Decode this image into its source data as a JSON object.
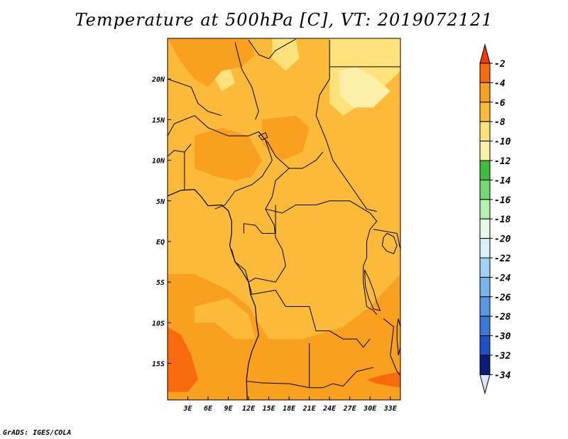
{
  "title": "Temperature at 500hPa [C], VT: 2019072121",
  "footer": "GrADS: IGES/COLA",
  "map": {
    "lon_range": [
      0,
      34.5
    ],
    "lat_range": [
      -19.5,
      25
    ],
    "x_ticks": [
      {
        "value": 3,
        "label": "3E"
      },
      {
        "value": 6,
        "label": "6E"
      },
      {
        "value": 9,
        "label": "9E"
      },
      {
        "value": 12,
        "label": "12E"
      },
      {
        "value": 15,
        "label": "15E"
      },
      {
        "value": 18,
        "label": "18E"
      },
      {
        "value": 21,
        "label": "21E"
      },
      {
        "value": 24,
        "label": "24E"
      },
      {
        "value": 27,
        "label": "27E"
      },
      {
        "value": 30,
        "label": "30E"
      },
      {
        "value": 33,
        "label": "33E"
      }
    ],
    "y_ticks": [
      {
        "value": 20,
        "label": "20N"
      },
      {
        "value": 15,
        "label": "15N"
      },
      {
        "value": 10,
        "label": "10N"
      },
      {
        "value": 5,
        "label": "5N"
      },
      {
        "value": 0,
        "label": "EQ"
      },
      {
        "value": -5,
        "label": "5S"
      },
      {
        "value": -10,
        "label": "10S"
      },
      {
        "value": -15,
        "label": "15S"
      }
    ],
    "regions": [
      {
        "name": "background",
        "color": "#fbba3a",
        "polygon": [
          [
            0,
            25
          ],
          [
            34.5,
            25
          ],
          [
            34.5,
            -19.5
          ],
          [
            0,
            -19.5
          ]
        ]
      },
      {
        "name": "cool-northeast",
        "color": "#fde27b",
        "polygon": [
          [
            24,
            25
          ],
          [
            34.5,
            25
          ],
          [
            34.5,
            21
          ],
          [
            32,
            19
          ],
          [
            29,
            17
          ],
          [
            26,
            15.5
          ],
          [
            24,
            17
          ]
        ]
      },
      {
        "name": "cool-northeast-inner",
        "color": "#fef0a8",
        "polygon": [
          [
            25.5,
            21
          ],
          [
            28,
            21.5
          ],
          [
            31,
            20
          ],
          [
            33,
            18.5
          ],
          [
            30.5,
            16.5
          ],
          [
            27.5,
            16.5
          ],
          [
            25.5,
            18
          ]
        ]
      },
      {
        "name": "cool-north-patch",
        "color": "#fde27b",
        "polygon": [
          [
            15.5,
            25
          ],
          [
            19,
            25
          ],
          [
            19.5,
            22.5
          ],
          [
            17.5,
            21
          ],
          [
            15.5,
            22.5
          ]
        ]
      },
      {
        "name": "cool-sahel-patch",
        "color": "#fde27b",
        "polygon": [
          [
            6,
            21.5
          ],
          [
            9,
            22
          ],
          [
            10,
            19.5
          ],
          [
            8,
            18.5
          ]
        ]
      },
      {
        "name": "warm-west-africa",
        "color": "#f9a021",
        "polygon": [
          [
            0,
            25
          ],
          [
            12,
            25
          ],
          [
            13,
            23
          ],
          [
            11,
            21.5
          ],
          [
            8,
            21
          ],
          [
            6,
            19
          ],
          [
            4,
            20
          ],
          [
            2,
            22
          ]
        ]
      },
      {
        "name": "warm-nigeria",
        "color": "#f9a021",
        "polygon": [
          [
            4,
            13
          ],
          [
            8,
            14
          ],
          [
            12,
            13
          ],
          [
            14,
            10
          ],
          [
            12.5,
            8
          ],
          [
            10,
            7.5
          ],
          [
            7,
            8
          ],
          [
            4,
            9
          ]
        ]
      },
      {
        "name": "warm-chad",
        "color": "#f9a021",
        "polygon": [
          [
            14,
            15
          ],
          [
            19,
            15.5
          ],
          [
            21,
            14
          ],
          [
            20,
            11
          ],
          [
            17,
            10
          ],
          [
            14,
            12
          ]
        ]
      },
      {
        "name": "warm-south",
        "color": "#f9a021",
        "polygon": [
          [
            0,
            -4
          ],
          [
            4,
            -4
          ],
          [
            9,
            -6
          ],
          [
            12,
            -8
          ],
          [
            15,
            -12
          ],
          [
            20,
            -12
          ],
          [
            26,
            -10.5
          ],
          [
            30,
            -8
          ],
          [
            34.5,
            -4
          ],
          [
            34.5,
            -19.5
          ],
          [
            0,
            -19.5
          ]
        ]
      },
      {
        "name": "cool-southwest-band",
        "color": "#fbba3a",
        "polygon": [
          [
            4,
            -8
          ],
          [
            9,
            -7
          ],
          [
            12,
            -9
          ],
          [
            13,
            -12
          ],
          [
            10,
            -12
          ],
          [
            7,
            -10
          ],
          [
            4,
            -10
          ]
        ]
      },
      {
        "name": "cool-south-center",
        "color": "#fbba3a",
        "polygon": [
          [
            18,
            -7
          ],
          [
            22,
            -6
          ],
          [
            24,
            -8
          ],
          [
            22,
            -11
          ],
          [
            19,
            -10
          ]
        ]
      },
      {
        "name": "hot-southwest",
        "color": "#f86a0e",
        "polygon": [
          [
            0,
            -10.5
          ],
          [
            2,
            -11.5
          ],
          [
            3.5,
            -14
          ],
          [
            4.5,
            -17
          ],
          [
            3,
            -18.5
          ],
          [
            0,
            -18.5
          ]
        ]
      },
      {
        "name": "hot-southeast",
        "color": "#f86a0e",
        "polygon": [
          [
            29.5,
            -17
          ],
          [
            31.5,
            -16.5
          ],
          [
            34.5,
            -16
          ],
          [
            34.5,
            -18
          ],
          [
            31,
            -17.5
          ]
        ]
      }
    ],
    "borders": [
      [
        [
          12,
          24.8
        ],
        [
          13.5,
          23
        ],
        [
          15,
          22.5
        ],
        [
          16,
          23.5
        ],
        [
          19,
          24.9
        ]
      ],
      [
        [
          10,
          24.5
        ],
        [
          11,
          21.2
        ],
        [
          12.5,
          19
        ],
        [
          13.5,
          16
        ],
        [
          13,
          15
        ]
      ],
      [
        [
          24,
          24.8
        ],
        [
          24,
          20
        ],
        [
          22.5,
          18
        ],
        [
          22,
          15.5
        ],
        [
          23.5,
          12.5
        ],
        [
          24.5,
          10
        ],
        [
          27,
          7
        ],
        [
          29.5,
          4
        ],
        [
          31,
          3.7
        ]
      ],
      [
        [
          24,
          21.5
        ],
        [
          34.5,
          21.5
        ]
      ],
      [
        [
          4,
          15.5
        ],
        [
          6,
          14
        ],
        [
          9,
          13
        ],
        [
          12,
          13
        ],
        [
          13.5,
          13.5
        ],
        [
          14.5,
          12.5
        ],
        [
          15.5,
          10
        ],
        [
          14,
          8
        ],
        [
          12.5,
          7
        ],
        [
          10,
          6.2
        ],
        [
          8.5,
          4.5
        ],
        [
          7,
          4
        ]
      ],
      [
        [
          13.5,
          13.5
        ],
        [
          15,
          12
        ],
        [
          16,
          10.5
        ],
        [
          18,
          9
        ],
        [
          20,
          9
        ],
        [
          22,
          10
        ],
        [
          23,
          11
        ]
      ],
      [
        [
          18,
          9
        ],
        [
          16,
          7.5
        ],
        [
          15.5,
          5.5
        ],
        [
          14.5,
          4
        ],
        [
          15.8,
          2
        ],
        [
          16,
          0.5
        ],
        [
          17,
          -1
        ],
        [
          17.5,
          -3
        ],
        [
          16,
          -5
        ],
        [
          13,
          -4.5
        ],
        [
          12,
          -5
        ]
      ],
      [
        [
          14.5,
          4
        ],
        [
          17,
          3.5
        ],
        [
          19,
          4.5
        ],
        [
          22,
          4.5
        ],
        [
          24,
          5
        ],
        [
          27,
          5
        ],
        [
          30,
          3.5
        ],
        [
          31,
          2.5
        ],
        [
          30,
          1.5
        ],
        [
          29.5,
          0
        ]
      ],
      [
        [
          16,
          4.5
        ],
        [
          16,
          1
        ],
        [
          14,
          1
        ],
        [
          13,
          2
        ],
        [
          11.3,
          2.2
        ],
        [
          11.3,
          1
        ]
      ],
      [
        [
          9.5,
          -1
        ],
        [
          10,
          -2.5
        ],
        [
          11.5,
          -3.5
        ],
        [
          12,
          -5
        ]
      ],
      [
        [
          29.5,
          0
        ],
        [
          29.5,
          -2
        ],
        [
          29,
          -3
        ],
        [
          29,
          -5
        ],
        [
          29.5,
          -8
        ],
        [
          30.5,
          -8.5
        ],
        [
          31,
          -9
        ]
      ],
      [
        [
          30.5,
          1.5
        ],
        [
          34,
          1
        ],
        [
          34.5,
          -1
        ]
      ],
      [
        [
          12,
          -5
        ],
        [
          12.5,
          -6.5
        ],
        [
          16,
          -6
        ],
        [
          17.5,
          -8
        ],
        [
          21,
          -8
        ],
        [
          22,
          -11
        ],
        [
          24,
          -11
        ],
        [
          26,
          -12
        ],
        [
          28,
          -12
        ],
        [
          29,
          -13
        ],
        [
          30,
          -12
        ]
      ],
      [
        [
          21,
          -12.5
        ],
        [
          21,
          -18
        ],
        [
          23,
          -18
        ],
        [
          24.5,
          -17.5
        ],
        [
          26,
          -17.8
        ],
        [
          28,
          -16
        ],
        [
          30.5,
          -15.5
        ]
      ],
      [
        [
          11.8,
          -17.2
        ],
        [
          14,
          -17.4
        ],
        [
          18,
          -17.5
        ],
        [
          21,
          -18
        ]
      ],
      [
        [
          32,
          -9.5
        ],
        [
          33.5,
          -10.5
        ],
        [
          33,
          -14
        ],
        [
          34,
          -16
        ],
        [
          34.5,
          -16.5
        ]
      ],
      [
        [
          0,
          5.5
        ],
        [
          0,
          10.5
        ],
        [
          1,
          11.2
        ],
        [
          2.5,
          11
        ],
        [
          3.5,
          12
        ]
      ],
      [
        [
          2.5,
          6.3
        ],
        [
          2.5,
          11
        ]
      ],
      [
        [
          0,
          13
        ],
        [
          1,
          14.5
        ],
        [
          4,
          15.5
        ]
      ],
      [
        [
          0,
          20
        ],
        [
          3.5,
          19
        ],
        [
          4.5,
          17
        ],
        [
          6,
          16
        ],
        [
          8,
          15.5
        ]
      ]
    ],
    "coastline": [
      [
        [
          0,
          5.6
        ],
        [
          2,
          6.3
        ],
        [
          4,
          6.4
        ],
        [
          5,
          5.5
        ],
        [
          6,
          4.4
        ],
        [
          8,
          4.5
        ],
        [
          9,
          3.8
        ],
        [
          9.5,
          2.5
        ],
        [
          9.5,
          1
        ],
        [
          9.2,
          -0.5
        ],
        [
          10,
          -2.5
        ],
        [
          11,
          -3.6
        ],
        [
          12,
          -5
        ],
        [
          12.3,
          -6.5
        ],
        [
          13,
          -8
        ],
        [
          13.2,
          -10
        ],
        [
          13.5,
          -11.5
        ],
        [
          12.5,
          -13.5
        ],
        [
          12,
          -15
        ],
        [
          11.7,
          -17
        ],
        [
          11.8,
          -19.5
        ]
      ]
    ],
    "lakes": [
      [
        [
          32.5,
          1
        ],
        [
          33.5,
          0.6
        ],
        [
          34,
          -0.5
        ],
        [
          33.5,
          -1.5
        ],
        [
          32.5,
          -1.2
        ],
        [
          31.8,
          -0.5
        ],
        [
          32,
          0.5
        ]
      ],
      [
        [
          29.2,
          -3.5
        ],
        [
          29.8,
          -4.5
        ],
        [
          30.5,
          -6
        ],
        [
          31,
          -7.5
        ],
        [
          31.5,
          -8.5
        ],
        [
          30.5,
          -8.3
        ],
        [
          29.8,
          -7
        ],
        [
          29.3,
          -5.5
        ]
      ],
      [
        [
          34.2,
          -9.5
        ],
        [
          34.5,
          -10.5
        ],
        [
          34.5,
          -13
        ],
        [
          34.2,
          -14
        ],
        [
          34,
          -12
        ],
        [
          34,
          -10.5
        ]
      ],
      [
        [
          13.5,
          13
        ],
        [
          14.5,
          13.4
        ],
        [
          14.8,
          12.8
        ],
        [
          14,
          12.5
        ]
      ]
    ]
  },
  "colorbar": {
    "levels": [
      "-2",
      "-4",
      "-6",
      "-8",
      "-10",
      "-12",
      "-14",
      "-16",
      "-18",
      "-20",
      "-22",
      "-24",
      "-26",
      "-28",
      "-30",
      "-32",
      "-34"
    ],
    "colors": [
      "#f86a0e",
      "#f9a021",
      "#fbba3a",
      "#fde27b",
      "#fef0a8",
      "#3cbe3c",
      "#72d972",
      "#b4f0b4",
      "#e6fae6",
      "#d9f0fa",
      "#a0d2f5",
      "#78b4ee",
      "#5a96e6",
      "#3c78dc",
      "#2050c8",
      "#0a1e78"
    ],
    "top_arrow_color": "#f03a0a",
    "bottom_arrow_color": "#dce6fa"
  }
}
